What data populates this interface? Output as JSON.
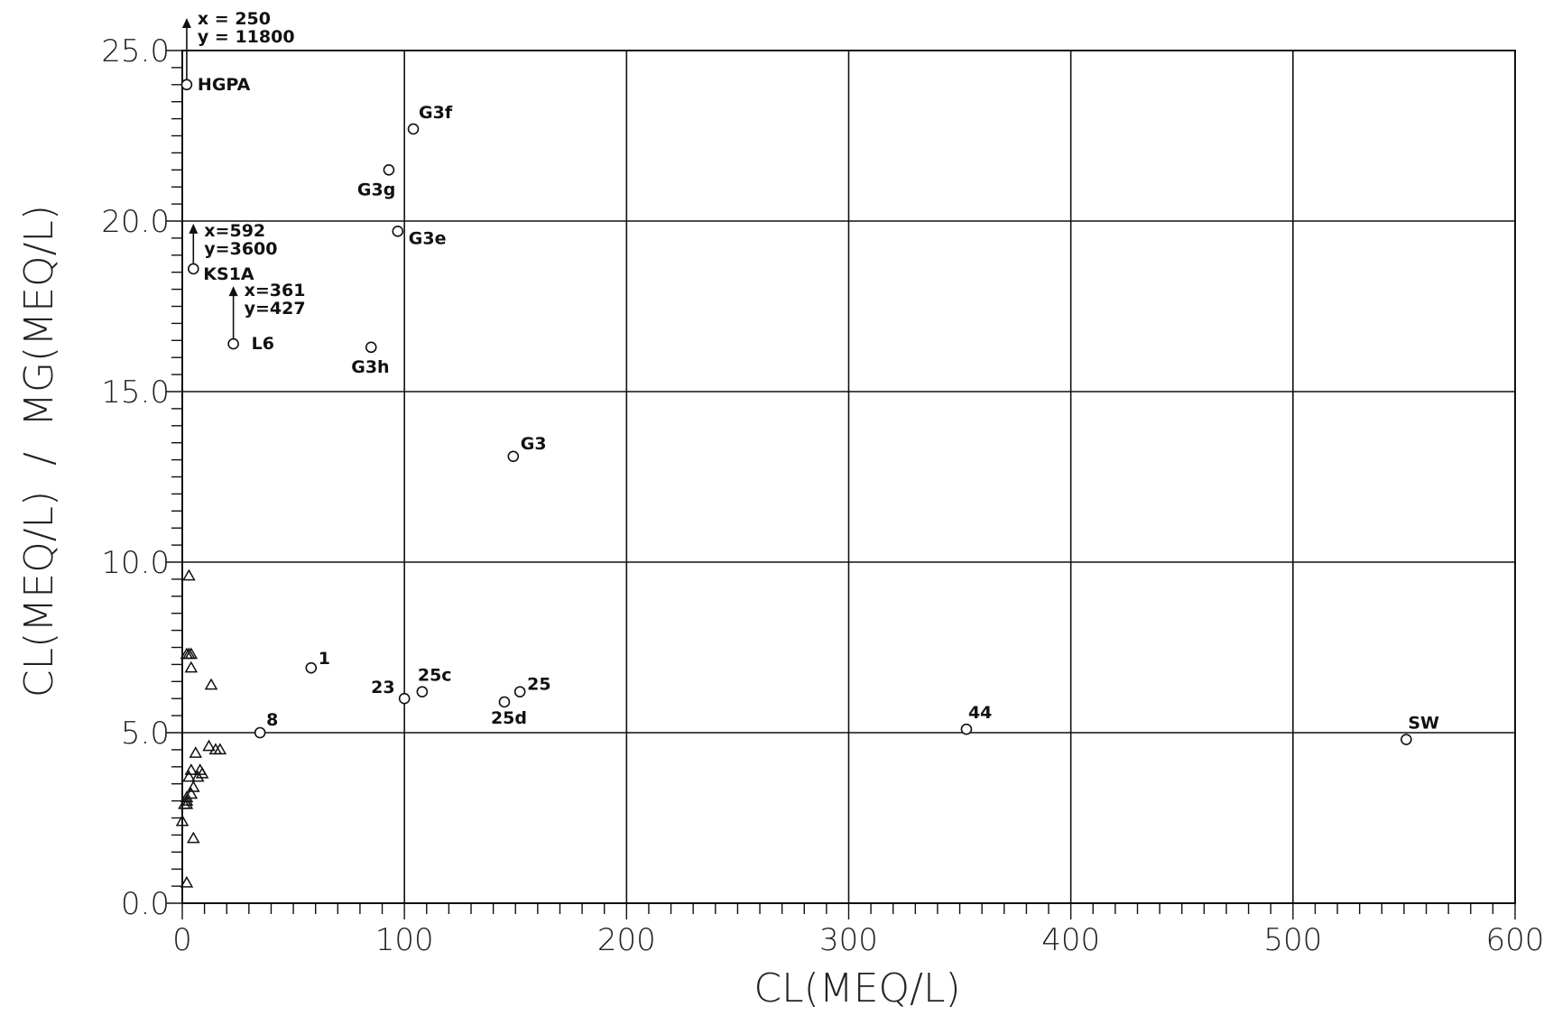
{
  "chart_data": {
    "type": "scatter",
    "title": "",
    "xlabel": "CL(MEQ/L)",
    "ylabel": "CL(MEQ/L)  /  MG(MEQ/L)",
    "xlim": [
      0,
      600
    ],
    "ylim": [
      0,
      25
    ],
    "x_ticks": [
      "0",
      "100",
      "200",
      "300",
      "400",
      "500",
      "600"
    ],
    "y_ticks": [
      "0.0",
      "5.0",
      "10.0",
      "15.0",
      "20.0",
      "25.0"
    ],
    "grid": true,
    "series": [
      {
        "marker": "circle",
        "points": [
          {
            "x": 2,
            "y": 24.0,
            "label": "HGPA"
          },
          {
            "x": 104,
            "y": 22.7,
            "label": "G3f"
          },
          {
            "x": 93,
            "y": 21.5,
            "label": "G3g"
          },
          {
            "x": 97,
            "y": 19.7,
            "label": "G3e"
          },
          {
            "x": 5,
            "y": 18.6,
            "label": "KS1A"
          },
          {
            "x": 23,
            "y": 16.4,
            "label": "L6"
          },
          {
            "x": 85,
            "y": 16.3,
            "label": "G3h"
          },
          {
            "x": 149,
            "y": 13.1,
            "label": "G3"
          },
          {
            "x": 58,
            "y": 6.9,
            "label": "1"
          },
          {
            "x": 100,
            "y": 6.0,
            "label": "23"
          },
          {
            "x": 108,
            "y": 6.2,
            "label": "25c"
          },
          {
            "x": 145,
            "y": 5.9,
            "label": "25d"
          },
          {
            "x": 152,
            "y": 6.2,
            "label": "25"
          },
          {
            "x": 35,
            "y": 5.0,
            "label": "8"
          },
          {
            "x": 353,
            "y": 5.1,
            "label": "44"
          },
          {
            "x": 551,
            "y": 4.8,
            "label": "SW"
          }
        ]
      },
      {
        "marker": "triangle",
        "points": [
          {
            "x": 3,
            "y": 9.6
          },
          {
            "x": 2,
            "y": 7.3
          },
          {
            "x": 3,
            "y": 7.3
          },
          {
            "x": 4,
            "y": 7.3
          },
          {
            "x": 4,
            "y": 6.9
          },
          {
            "x": 13,
            "y": 6.4
          },
          {
            "x": 12,
            "y": 4.6
          },
          {
            "x": 15,
            "y": 4.5
          },
          {
            "x": 17,
            "y": 4.5
          },
          {
            "x": 6,
            "y": 4.4
          },
          {
            "x": 4,
            "y": 3.9
          },
          {
            "x": 8,
            "y": 3.9
          },
          {
            "x": 9,
            "y": 3.8
          },
          {
            "x": 3,
            "y": 3.7
          },
          {
            "x": 7,
            "y": 3.7
          },
          {
            "x": 5,
            "y": 3.4
          },
          {
            "x": 4,
            "y": 3.2
          },
          {
            "x": 2,
            "y": 3.1
          },
          {
            "x": 2,
            "y": 3.0
          },
          {
            "x": 1,
            "y": 2.9
          },
          {
            "x": 2,
            "y": 2.9
          },
          {
            "x": 0,
            "y": 2.4
          },
          {
            "x": 5,
            "y": 1.9
          },
          {
            "x": 2,
            "y": 0.6
          }
        ]
      }
    ],
    "annotations": [
      {
        "at": "HGPA",
        "x_text": "x = 250",
        "y_text": "y = 11800"
      },
      {
        "at": "KS1A",
        "x_text": "x=592",
        "y_text": "y=3600"
      },
      {
        "at": "L6",
        "x_text": "x=361",
        "y_text": "y=427"
      }
    ]
  }
}
